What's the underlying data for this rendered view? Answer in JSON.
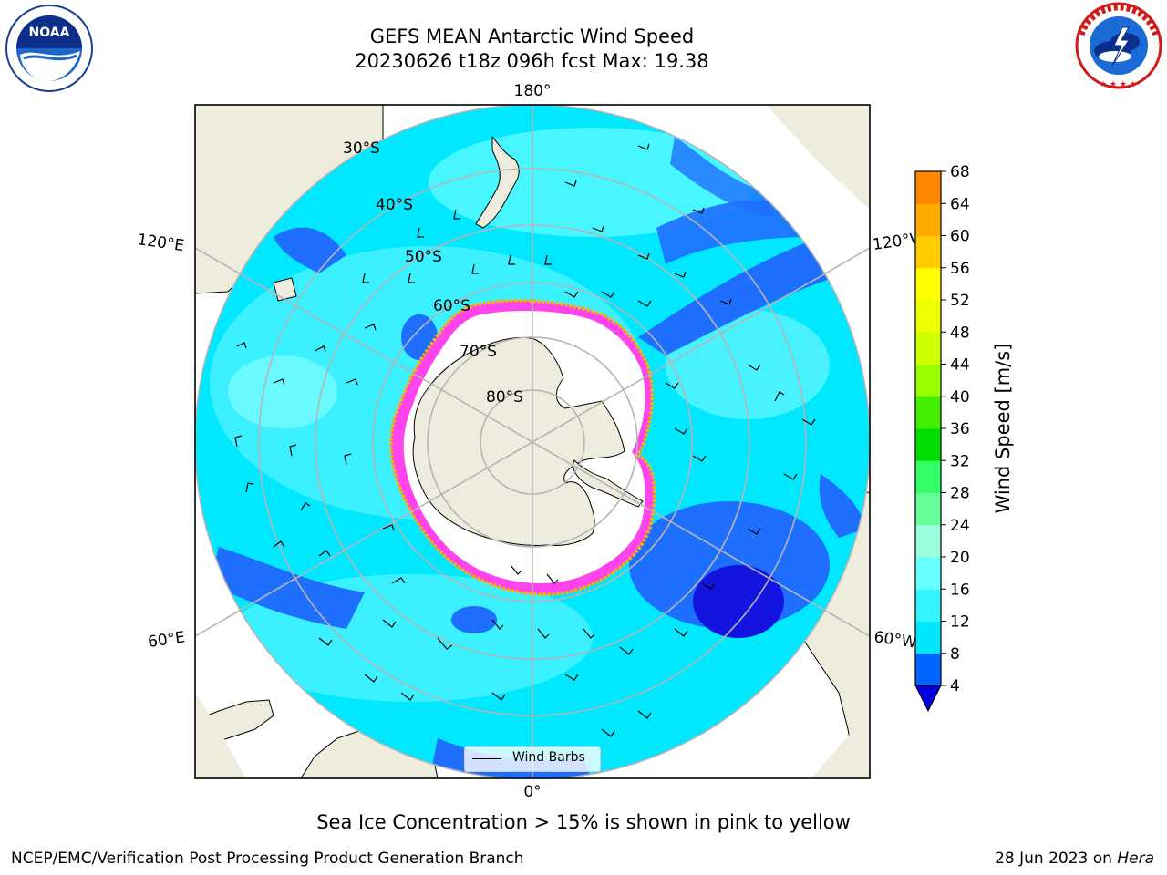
{
  "header": {
    "title_line1": "GEFS MEAN Antarctic Wind Speed",
    "title_line2": "20230626 t18z 096h fcst   Max: 19.38"
  },
  "logos": {
    "noaa": {
      "text": "NOAA",
      "ring_text": "NATIONAL OCEANIC AND ATMOSPHERIC ADMINISTRATION · U.S. DEPARTMENT OF COMMERCE"
    },
    "nws": {
      "ring_text": "NATIONAL WEATHER SERVICE"
    }
  },
  "map": {
    "projection": "south-polar-stereographic",
    "longitude_labels": {
      "top": "180°",
      "upper_left": "120°E",
      "upper_right": "120°W",
      "lower_left": "60°E",
      "lower_right": "60°W",
      "bottom": "0°"
    },
    "latitude_labels": [
      "30°S",
      "40°S",
      "50°S",
      "60°S",
      "70°S",
      "80°S"
    ],
    "legend_label": "Wind Barbs",
    "colors": {
      "land": "#eeecdc",
      "ice_shelf": "#ffffff",
      "sea_ice_edge": [
        "#ff3cf0",
        "#ffb000"
      ],
      "gridline": "#b5b5b5"
    }
  },
  "colorbar": {
    "label": "Wind Speed [m/s]",
    "ticks": [
      "4",
      "8",
      "12",
      "16",
      "20",
      "24",
      "28",
      "32",
      "36",
      "40",
      "44",
      "48",
      "52",
      "56",
      "60",
      "64",
      "68"
    ],
    "colors": [
      "#0066ff",
      "#00e6ff",
      "#33f5ff",
      "#66ffff",
      "#99ffdd",
      "#66ff99",
      "#33ff66",
      "#00dd00",
      "#44ee00",
      "#99ff00",
      "#ccff00",
      "#eeff00",
      "#ffff00",
      "#ffcc00",
      "#ffaa00",
      "#ff8800",
      "#ff6600",
      "#ff3300",
      "#ff0000"
    ],
    "under_color": "#0000dd"
  },
  "note": "Sea Ice Concentration > 15% is shown in pink to yellow",
  "footer": {
    "left": "NCEP/EMC/Verification Post Processing Product Generation Branch",
    "right_prefix": "28 Jun 2023 on ",
    "right_host": "Hera"
  }
}
